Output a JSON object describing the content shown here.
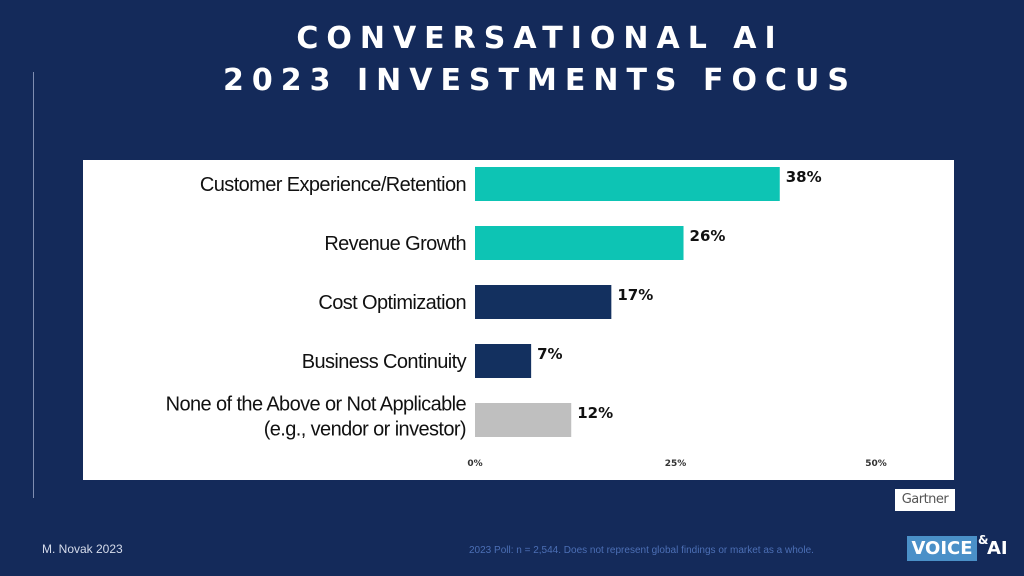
{
  "slide": {
    "title_line1": "CONVERSATIONAL AI",
    "title_line2": "2023 INVESTMENTS FOCUS",
    "source_badge": "Gartner",
    "author": "M. Novak  2023",
    "footnote": "2023 Poll: n = 2,544.  Does not represent global findings or market as a whole.",
    "logo": {
      "word": "VOICE",
      "amp": "&",
      "suffix": "AI"
    }
  },
  "chart_data": {
    "type": "bar",
    "orientation": "horizontal",
    "categories": [
      [
        "Customer Experience/Retention"
      ],
      [
        "Revenue Growth"
      ],
      [
        "Cost Optimization"
      ],
      [
        "Business Continuity"
      ],
      [
        "None of the Above or Not Applicable",
        "(e.g., vendor or investor)"
      ]
    ],
    "values": [
      38,
      26,
      17,
      7,
      12
    ],
    "value_labels": [
      "38%",
      "26%",
      "17%",
      "7%",
      "12%"
    ],
    "bar_colors": [
      "#0dc4b4",
      "#0dc4b4",
      "#13305f",
      "#13305f",
      "#bfbfbf"
    ],
    "xlim": [
      0,
      50
    ],
    "xticks": [
      0,
      25,
      50
    ],
    "xtick_labels": [
      "0%",
      "25%",
      "50%"
    ],
    "grid": false,
    "legend": "none"
  }
}
